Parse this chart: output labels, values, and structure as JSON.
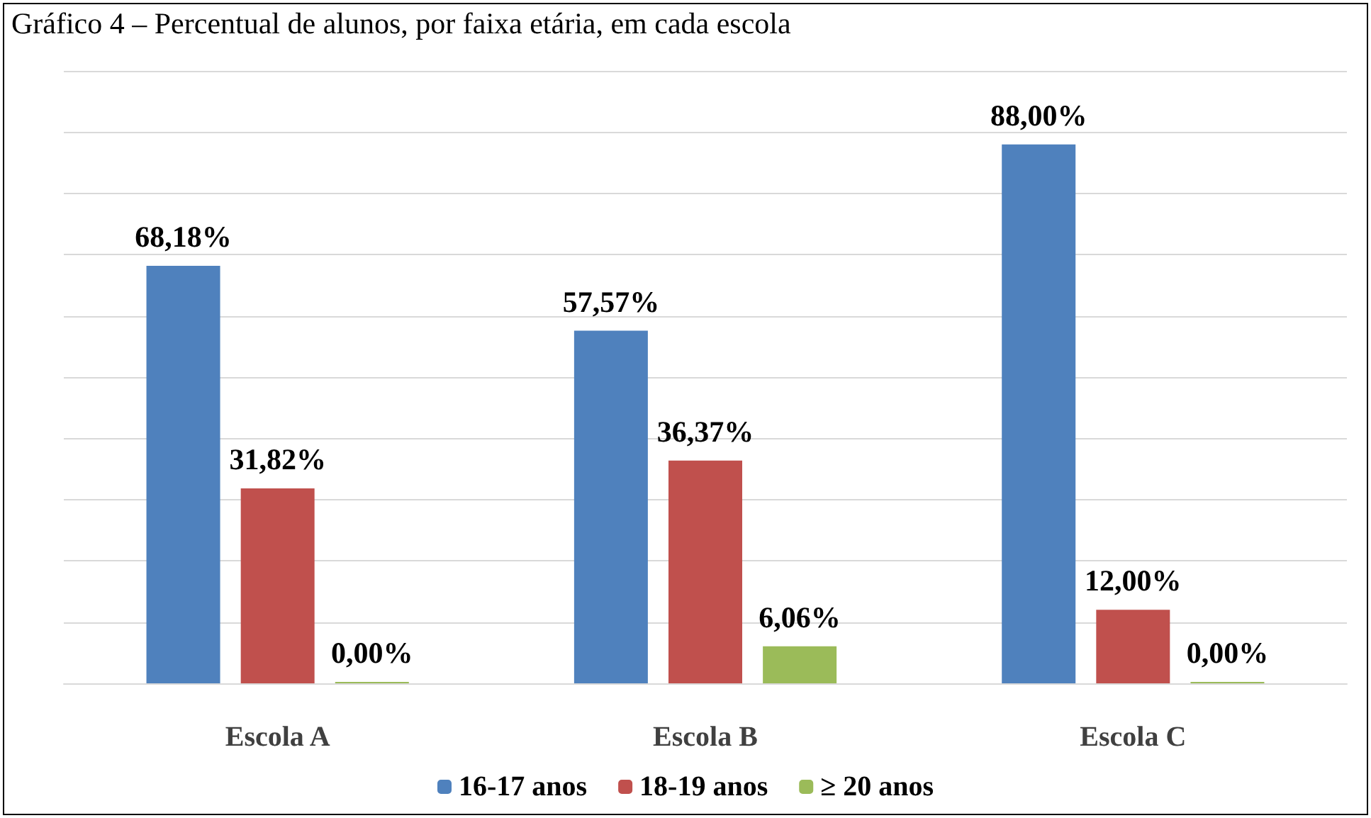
{
  "chart_data": {
    "type": "bar",
    "title": "Gráfico 4 – Percentual de alunos, por faixa etária, em cada escola",
    "categories": [
      "Escola A",
      "Escola B",
      "Escola C"
    ],
    "series": [
      {
        "name": "16-17 anos",
        "color": "#4f81bd",
        "values": [
          68.18,
          57.57,
          88.0
        ],
        "value_labels": [
          "68,18%",
          "57,57%",
          "88,00%"
        ]
      },
      {
        "name": "18-19 anos",
        "color": "#c0504d",
        "values": [
          31.82,
          36.37,
          12.0
        ],
        "value_labels": [
          "31,82%",
          "36,37%",
          "12,00%"
        ]
      },
      {
        "name": "≥ 20 anos",
        "color": "#9bbb59",
        "values": [
          0.0,
          6.06,
          0.0
        ],
        "value_labels": [
          "0,00%",
          "6,06%",
          "0,00%"
        ]
      }
    ],
    "ylim": [
      0,
      100
    ],
    "yticks": [
      {
        "value": 0,
        "label": null
      },
      {
        "value": 10,
        "label": null
      },
      {
        "value": 20,
        "label": null
      },
      {
        "value": 30,
        "label": null
      },
      {
        "value": 40,
        "label": null
      },
      {
        "value": 50,
        "label": null
      },
      {
        "value": 60,
        "label": null
      },
      {
        "value": 70,
        "label": null
      },
      {
        "value": 80,
        "label": null
      },
      {
        "value": 90,
        "label": null
      },
      {
        "value": 100,
        "label": null
      }
    ],
    "grid": "y",
    "legend": "bottom",
    "tick_labels": "x"
  }
}
